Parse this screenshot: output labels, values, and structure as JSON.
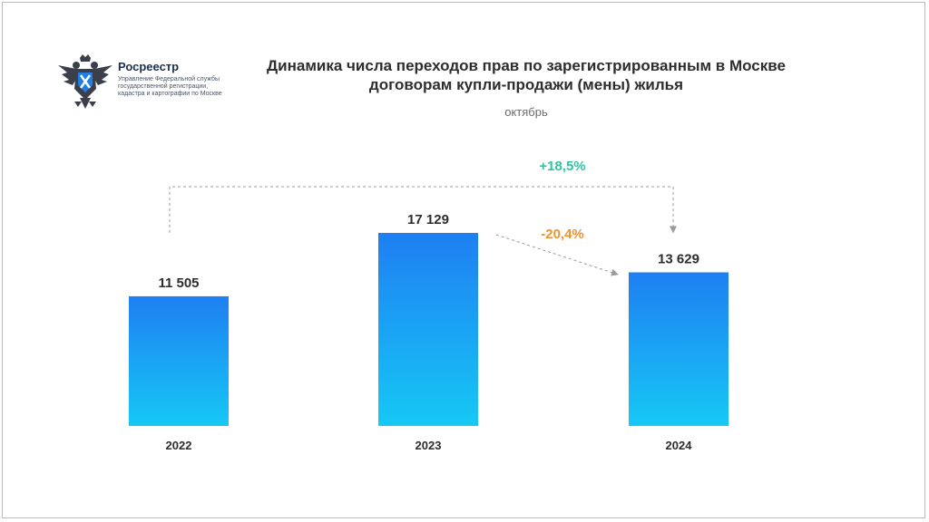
{
  "logo": {
    "name": "Росреестр",
    "subtitle": "Управление Федеральной службы государственной регистрации, кадастра и картографии по Москве",
    "emblem_icon": "double-headed-eagle-icon"
  },
  "colors": {
    "bar_top": "#1e7ff2",
    "bar_bottom": "#16c8f5",
    "increase": "#2ec4a0",
    "decrease": "#f0922f",
    "text": "#2d2d2d"
  },
  "chart_data": {
    "type": "bar",
    "title": "Динамика числа переходов прав по зарегистрированным в Москве договорам купли-продажи (мены) жилья",
    "subtitle": "октябрь",
    "categories": [
      "2022",
      "2023",
      "2024"
    ],
    "values": [
      11505,
      17129,
      13629
    ],
    "value_labels": [
      "11 505",
      "17 129",
      "13 629"
    ],
    "ylim": [
      0,
      17129
    ],
    "annotations": [
      {
        "from": "2022",
        "to": "2024",
        "text": "+18,5%",
        "kind": "increase"
      },
      {
        "from": "2023",
        "to": "2024",
        "text": "-20,4%",
        "kind": "decrease"
      }
    ]
  }
}
